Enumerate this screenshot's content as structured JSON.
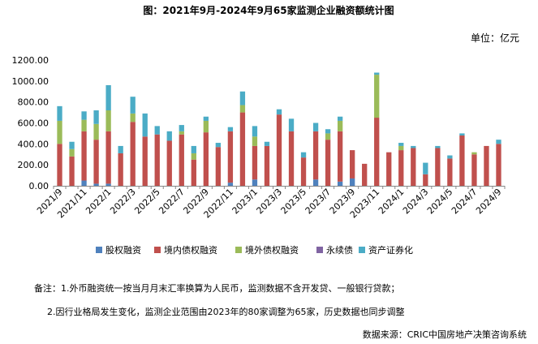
{
  "chart_data": {
    "type": "bar",
    "stacked": true,
    "title": "图：2021年9月-2024年9月65家监测企业融资额统计图",
    "unit_label": "单位：亿元",
    "ylim": [
      0,
      1200
    ],
    "yticks": [
      "0.00",
      "200.00",
      "400.00",
      "600.00",
      "800.00",
      "1000.00",
      "1200.00"
    ],
    "ytick_values": [
      0,
      200,
      400,
      600,
      800,
      1000,
      1200
    ],
    "grid": false,
    "legend_position": "bottom",
    "categories": [
      "2021/9",
      "2021/10",
      "2021/11",
      "2021/12",
      "2022/1",
      "2022/2",
      "2022/3",
      "2022/4",
      "2022/5",
      "2022/6",
      "2022/7",
      "2022/8",
      "2022/9",
      "2022/10",
      "2022/11",
      "2022/12",
      "2023/1",
      "2023/2",
      "2023/3",
      "2023/4",
      "2023/5",
      "2023/6",
      "2023/7",
      "2023/8",
      "2023/9",
      "2023/10",
      "2023/11",
      "2023/12",
      "2024/1",
      "2024/2",
      "2024/3",
      "2024/4",
      "2024/5",
      "2024/6",
      "2024/7",
      "2024/8",
      "2024/9"
    ],
    "xtick_labels": [
      "2021/9",
      "2021/11",
      "2022/1",
      "2022/3",
      "2022/5",
      "2022/7",
      "2022/9",
      "2022/11",
      "2023/1",
      "2023/3",
      "2023/5",
      "2023/7",
      "2023/9",
      "2023/11",
      "2024/1",
      "2024/3",
      "2024/5",
      "2024/7",
      "2024/9"
    ],
    "series": [
      {
        "name": "股权融资",
        "color": "#4f81bd",
        "values": [
          0,
          0,
          50,
          20,
          20,
          0,
          0,
          0,
          0,
          0,
          0,
          0,
          0,
          0,
          30,
          0,
          60,
          0,
          0,
          0,
          0,
          60,
          0,
          40,
          70,
          0,
          0,
          0,
          0,
          0,
          0,
          0,
          0,
          0,
          0,
          0,
          0
        ]
      },
      {
        "name": "境内债权融资",
        "color": "#c0504d",
        "values": [
          400,
          280,
          470,
          420,
          500,
          310,
          610,
          470,
          490,
          430,
          490,
          250,
          510,
          370,
          490,
          700,
          320,
          380,
          680,
          520,
          270,
          460,
          440,
          480,
          270,
          210,
          650,
          320,
          340,
          360,
          110,
          360,
          260,
          480,
          300,
          380,
          400
        ]
      },
      {
        "name": "境外债权融资",
        "color": "#9bbb59",
        "values": [
          220,
          70,
          110,
          150,
          200,
          0,
          80,
          0,
          0,
          0,
          30,
          60,
          110,
          0,
          0,
          70,
          90,
          0,
          0,
          0,
          0,
          0,
          60,
          100,
          0,
          0,
          410,
          0,
          40,
          0,
          0,
          0,
          0,
          0,
          20,
          0,
          0
        ]
      },
      {
        "name": "永续债",
        "color": "#8064a2",
        "values": [
          0,
          0,
          0,
          0,
          0,
          0,
          0,
          0,
          0,
          0,
          0,
          0,
          0,
          0,
          0,
          0,
          0,
          0,
          0,
          0,
          0,
          0,
          0,
          0,
          0,
          0,
          0,
          0,
          0,
          0,
          0,
          0,
          0,
          0,
          0,
          0,
          0
        ]
      },
      {
        "name": "资产证券化",
        "color": "#4bacc6",
        "values": [
          140,
          70,
          80,
          130,
          240,
          70,
          160,
          220,
          80,
          90,
          60,
          70,
          40,
          40,
          40,
          130,
          100,
          40,
          50,
          120,
          50,
          80,
          40,
          40,
          0,
          0,
          20,
          0,
          30,
          20,
          110,
          20,
          30,
          20,
          0,
          0,
          40
        ]
      }
    ]
  },
  "notes": {
    "note1": "备注：1.外币融资统一按当月月末汇率换算为人民币，监测数据不含开发贷、一般银行贷款；",
    "note2": "2.因行业格局发生变化，监测企业范围由2023年的80家调整为65家，历史数据也同步调整",
    "source": "数据来源：CRIC中国房地产决策咨询系统"
  }
}
